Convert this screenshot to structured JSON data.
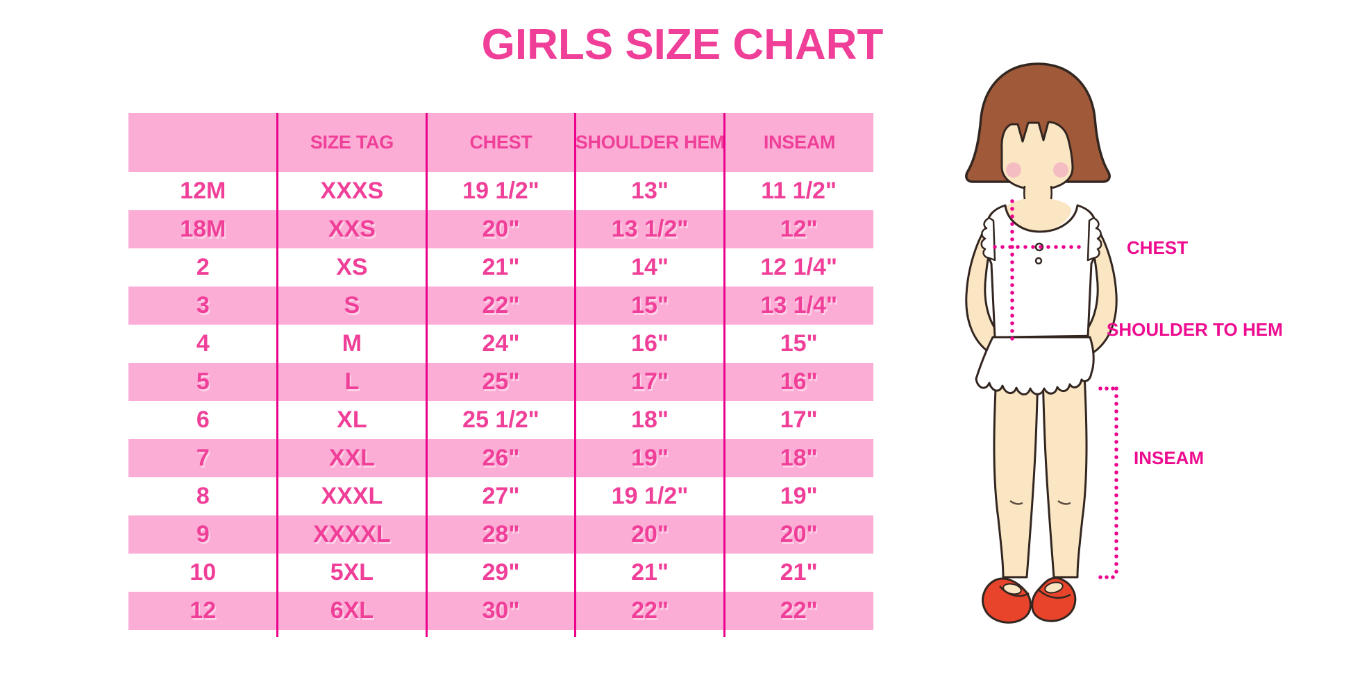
{
  "title": "GIRLS SIZE CHART",
  "table": {
    "headers": [
      "",
      "SIZE TAG",
      "CHEST",
      "SHOULDER HEM",
      "INSEAM"
    ],
    "rows": [
      [
        "12M",
        "XXXS",
        "19 1/2\"",
        "13\"",
        "11 1/2\""
      ],
      [
        "18M",
        "XXS",
        "20\"",
        "13 1/2\"",
        "12\""
      ],
      [
        "2",
        "XS",
        "21\"",
        "14\"",
        "12 1/4\""
      ],
      [
        "3",
        "S",
        "22\"",
        "15\"",
        "13 1/4\""
      ],
      [
        "4",
        "M",
        "24\"",
        "16\"",
        "15\""
      ],
      [
        "5",
        "L",
        "25\"",
        "17\"",
        "16\""
      ],
      [
        "6",
        "XL",
        "25 1/2\"",
        "18\"",
        "17\""
      ],
      [
        "7",
        "XXL",
        "26\"",
        "19\"",
        "18\""
      ],
      [
        "8",
        "XXXL",
        "27\"",
        "19 1/2\"",
        "19\""
      ],
      [
        "9",
        "XXXXL",
        "28\"",
        "20\"",
        "20\""
      ],
      [
        "10",
        "5XL",
        "29\"",
        "21\"",
        "21\""
      ],
      [
        "12",
        "6XL",
        "30\"",
        "22\"",
        "22\""
      ]
    ]
  },
  "figure_labels": {
    "chest": "CHEST",
    "shoulder_to_hem": "SHOULDER TO HEM",
    "inseam": "INSEAM"
  },
  "colors": {
    "accent_text_pink": "#F03F98",
    "row_pink": "#FBADD6",
    "line_magenta": "#EB008B",
    "label_pink": "#ED0C8F",
    "hair_brown": "#A05A39",
    "skin": "#FBE6C4",
    "blush": "#F2B3C2",
    "shoe_red": "#E8432B"
  },
  "chart_data": {
    "type": "table",
    "title": "GIRLS SIZE CHART",
    "columns": [
      "",
      "SIZE TAG",
      "CHEST",
      "SHOULDER HEM",
      "INSEAM"
    ],
    "rows": [
      [
        "12M",
        "XXXS",
        "19 1/2\"",
        "13\"",
        "11 1/2\""
      ],
      [
        "18M",
        "XXS",
        "20\"",
        "13 1/2\"",
        "12\""
      ],
      [
        "2",
        "XS",
        "21\"",
        "14\"",
        "12 1/4\""
      ],
      [
        "3",
        "S",
        "22\"",
        "15\"",
        "13 1/4\""
      ],
      [
        "4",
        "M",
        "24\"",
        "16\"",
        "15\""
      ],
      [
        "5",
        "L",
        "25\"",
        "17\"",
        "16\""
      ],
      [
        "6",
        "XL",
        "25 1/2\"",
        "18\"",
        "17\""
      ],
      [
        "7",
        "XXL",
        "26\"",
        "19\"",
        "18\""
      ],
      [
        "8",
        "XXXL",
        "27\"",
        "19 1/2\"",
        "19\""
      ],
      [
        "9",
        "XXXXL",
        "28\"",
        "20\"",
        "20\""
      ],
      [
        "10",
        "5XL",
        "29\"",
        "21\"",
        "21\""
      ],
      [
        "12",
        "6XL",
        "30\"",
        "22\"",
        "22\""
      ]
    ],
    "layout": {
      "striped_rows": true,
      "header_fill": "#FBADD6",
      "stripe_fill": "#FBADD6",
      "column_dividers": true,
      "annotations": [
        "CHEST",
        "SHOULDER TO HEM",
        "INSEAM"
      ]
    }
  }
}
